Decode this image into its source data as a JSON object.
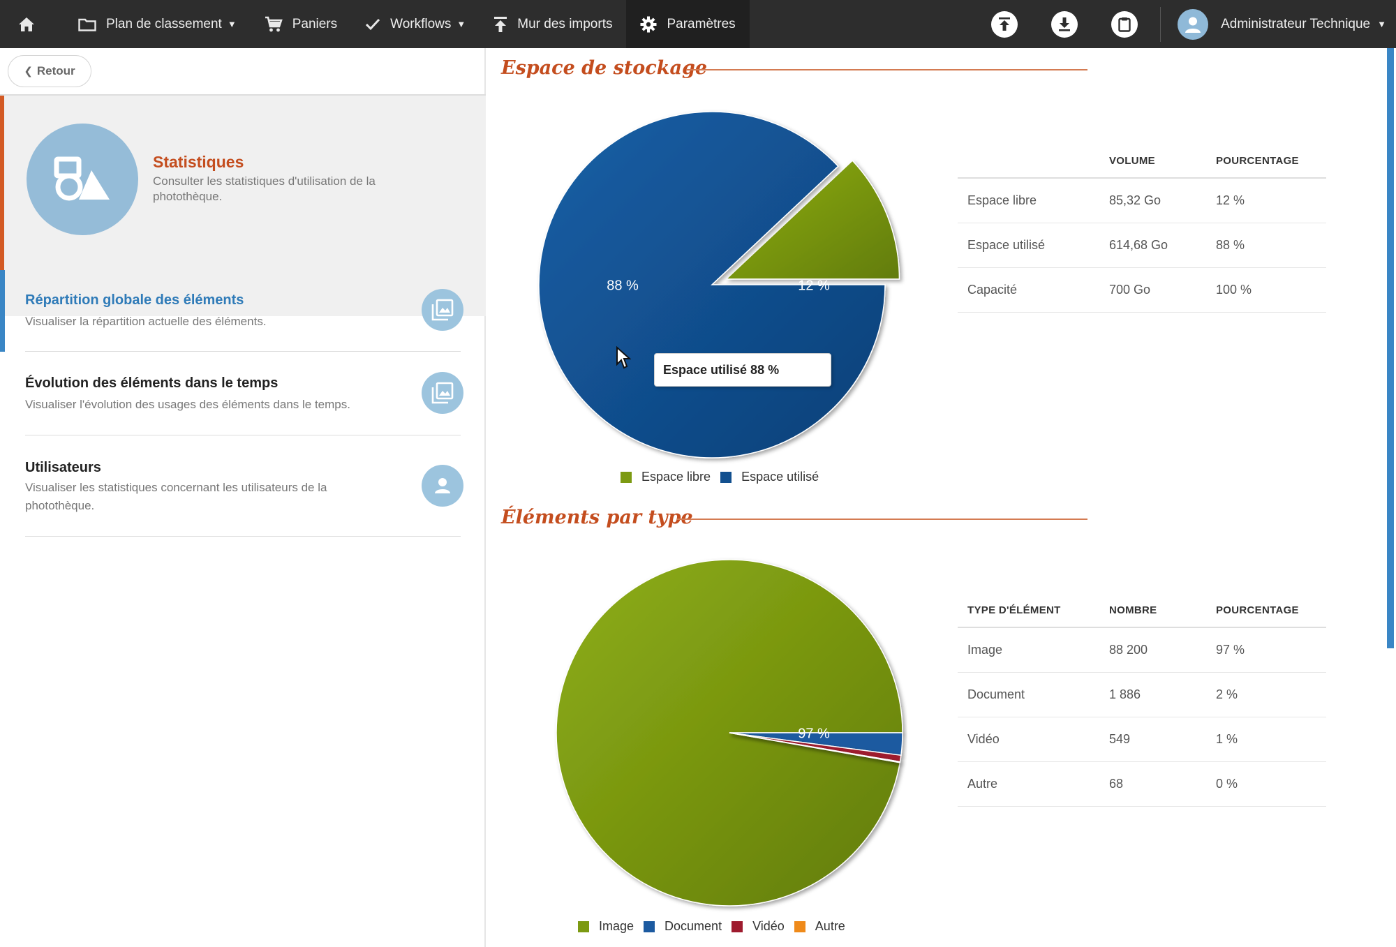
{
  "nav": {
    "items": [
      {
        "label": "Plan de classement",
        "icon": "folder-icon",
        "caret": true
      },
      {
        "label": "Paniers",
        "icon": "cart-icon",
        "caret": false
      },
      {
        "label": "Workflows",
        "icon": "check-icon",
        "caret": true
      },
      {
        "label": "Mur des imports",
        "icon": "upload-arrow-icon",
        "caret": false
      },
      {
        "label": "Paramètres",
        "icon": "gear-icon",
        "caret": false,
        "active": true
      }
    ],
    "user_name": "Administrateur Technique"
  },
  "sidebar": {
    "back_label": "Retour",
    "hero": {
      "title": "Statistiques",
      "description": "Consulter les statistiques d'utilisation de la photothèque."
    },
    "items": [
      {
        "title": "Répartition globale des éléments",
        "description": "Visualiser la répartition actuelle des éléments.",
        "active": true,
        "icon": "gallery-icon"
      },
      {
        "title": "Évolution des éléments dans le temps",
        "description": "Visualiser l'évolution des usages des éléments dans le temps.",
        "active": false,
        "icon": "gallery-icon"
      },
      {
        "title": "Utilisateurs",
        "description": "Visualiser les statistiques concernant les utilisateurs de la photothèque.",
        "active": false,
        "icon": "user-icon"
      }
    ]
  },
  "storage": {
    "title": "Espace de stockage",
    "table": {
      "headers": [
        "",
        "VOLUME",
        "POURCENTAGE"
      ],
      "rows": [
        [
          "Espace libre",
          "85,32 Go",
          "12 %"
        ],
        [
          "Espace utilisé",
          "614,68 Go",
          "88 %"
        ],
        [
          "Capacité",
          "700 Go",
          "100 %"
        ]
      ]
    },
    "tooltip": "Espace utilisé 88 %"
  },
  "types": {
    "title": "Éléments par type",
    "table": {
      "headers": [
        "TYPE D'ÉLÉMENT",
        "NOMBRE",
        "POURCENTAGE"
      ],
      "rows": [
        [
          "Image",
          "88 200",
          "97 %"
        ],
        [
          "Document",
          "1 886",
          "2 %"
        ],
        [
          "Vidéo",
          "549",
          "1 %"
        ],
        [
          "Autre",
          "68",
          "0 %"
        ]
      ]
    }
  },
  "chart_data": [
    {
      "type": "pie",
      "categories": [
        "Espace libre",
        "Espace utilisé"
      ],
      "values": [
        12,
        88
      ],
      "data_labels": [
        "12 %",
        "88 %"
      ],
      "colors": [
        "#7c9a12",
        "#12508f"
      ],
      "exploded": "Espace libre",
      "legend": "bottom"
    },
    {
      "type": "pie",
      "categories": [
        "Image",
        "Document",
        "Vidéo",
        "Autre"
      ],
      "values": [
        88200,
        1886,
        549,
        68
      ],
      "data_labels": [
        "97 %",
        "",
        "",
        ""
      ],
      "colors": [
        "#7c9a12",
        "#1c5aa0",
        "#9e1b2e",
        "#ef8a1a"
      ],
      "legend": "bottom"
    }
  ]
}
